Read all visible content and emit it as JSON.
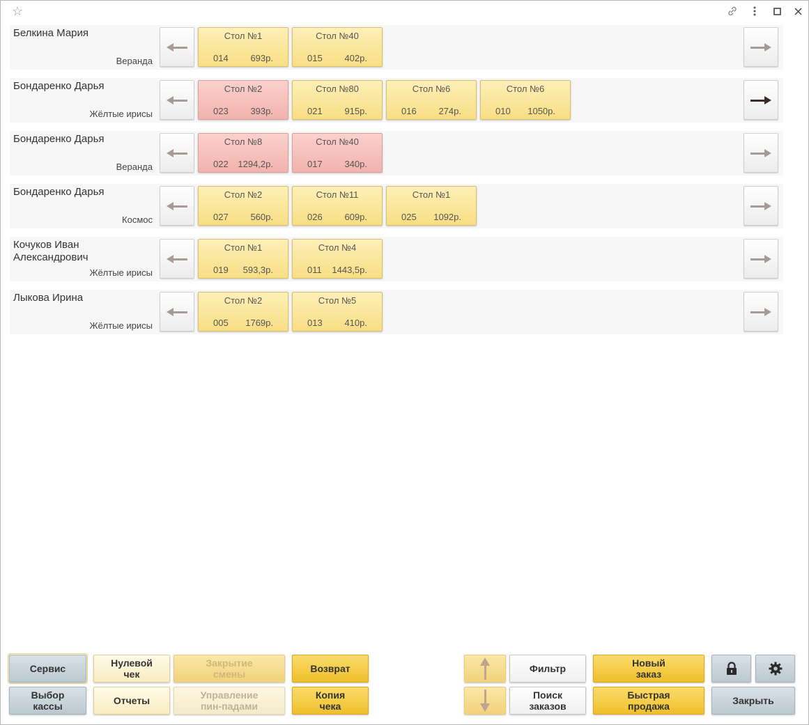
{
  "titlebar": {
    "favorite_icon": "star-icon",
    "link_icon": "link-icon",
    "menu_icon": "more-vertical-icon",
    "maximize_icon": "maximize-icon",
    "close_icon": "close-icon"
  },
  "rows": [
    {
      "waiter": "Белкина Мария",
      "hall": "Веранда",
      "right_arrow_active": false,
      "orders": [
        {
          "table": "Стол №1",
          "number": "014",
          "sum": "693р.",
          "color": "yellow"
        },
        {
          "table": "Стол №40",
          "number": "015",
          "sum": "402р.",
          "color": "yellow"
        }
      ]
    },
    {
      "waiter": "Бондаренко Дарья",
      "hall": "Жёлтые ирисы",
      "right_arrow_active": true,
      "orders": [
        {
          "table": "Стол №2",
          "number": "023",
          "sum": "393р.",
          "color": "red"
        },
        {
          "table": "Стол №80",
          "number": "021",
          "sum": "915р.",
          "color": "yellow"
        },
        {
          "table": "Стол №6",
          "number": "016",
          "sum": "274р.",
          "color": "yellow"
        },
        {
          "table": "Стол №6",
          "number": "010",
          "sum": "1050р.",
          "color": "yellow"
        }
      ]
    },
    {
      "waiter": "Бондаренко Дарья",
      "hall": "Веранда",
      "right_arrow_active": false,
      "orders": [
        {
          "table": "Стол №8",
          "number": "022",
          "sum": "1294,2р.",
          "color": "red"
        },
        {
          "table": "Стол №40",
          "number": "017",
          "sum": "340р.",
          "color": "red"
        }
      ]
    },
    {
      "waiter": "Бондаренко Дарья",
      "hall": "Космос",
      "right_arrow_active": false,
      "orders": [
        {
          "table": "Стол №2",
          "number": "027",
          "sum": "560р.",
          "color": "yellow"
        },
        {
          "table": "Стол №11",
          "number": "026",
          "sum": "609р.",
          "color": "yellow"
        },
        {
          "table": "Стол №1",
          "number": "025",
          "sum": "1092р.",
          "color": "yellow"
        }
      ]
    },
    {
      "waiter": "Кочуков Иван Александрович",
      "hall": "Жёлтые ирисы",
      "right_arrow_active": false,
      "orders": [
        {
          "table": "Стол №1",
          "number": "019",
          "sum": "593,3р.",
          "color": "yellow"
        },
        {
          "table": "Стол №4",
          "number": "011",
          "sum": "1443,5р.",
          "color": "yellow"
        }
      ]
    },
    {
      "waiter": "Лыкова Ирина",
      "hall": "Жёлтые ирисы",
      "right_arrow_active": false,
      "orders": [
        {
          "table": "Стол №2",
          "number": "005",
          "sum": "1769р.",
          "color": "yellow"
        },
        {
          "table": "Стол №5",
          "number": "013",
          "sum": "410р.",
          "color": "yellow"
        }
      ]
    }
  ],
  "buttons": {
    "service": "Сервис",
    "select_register": "Выбор кассы",
    "zero_check": "Нулевой чек",
    "reports": "Отчеты",
    "close_shift": "Закрытие смены",
    "pin_pads": "Управление пин-падами",
    "refund": "Возврат",
    "receipt_copy": "Копия чека",
    "filter": "Фильтр",
    "search_orders": "Поиск заказов",
    "new_order": "Новый заказ",
    "quick_sale": "Быстрая продажа",
    "close": "Закрыть",
    "lock_icon": "lock-icon",
    "settings_icon": "gear-icon",
    "up_icon": "arrow-up-icon",
    "down_icon": "arrow-down-icon"
  },
  "colors": {
    "order_yellow": "#f8de84",
    "order_red": "#f2b3ae",
    "button_gray": "#bcc8d0",
    "button_yellow": "#efbf2a"
  }
}
